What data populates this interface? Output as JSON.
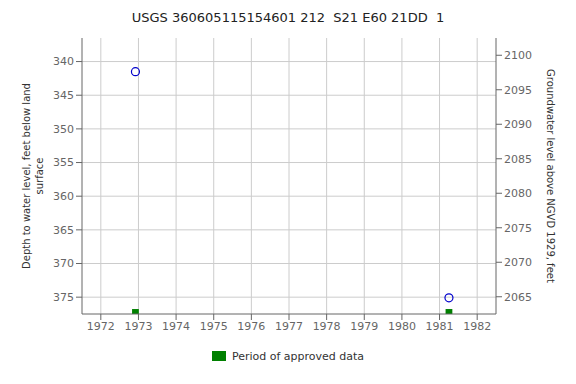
{
  "chart_data": {
    "type": "scatter",
    "title": "USGS 360605115154601 212  S21 E60 21DD  1",
    "x": [
      1972.92,
      1981.25
    ],
    "values": [
      341.5,
      375.1
    ],
    "color": "#0000cc",
    "marker": "circle",
    "xlim": [
      1971.5,
      1982.5
    ],
    "xticks": [
      1972,
      1973,
      1974,
      1975,
      1976,
      1977,
      1978,
      1979,
      1980,
      1981,
      1982
    ],
    "ylim": [
      377.5,
      336.5
    ],
    "yticks": [
      340,
      345,
      350,
      355,
      360,
      365,
      370,
      375
    ],
    "y2lim": [
      2062.5,
      2102.5
    ],
    "y2ticks": [
      2065,
      2070,
      2075,
      2080,
      2085,
      2090,
      2095,
      2100
    ],
    "ylabel": "Depth to water level, feet below land\n surface",
    "y2label": "Groundwater level above NGVD 1929, feet",
    "approved_periods": {
      "name": "Period of approved data",
      "color": "#008000",
      "x": [
        1972.92,
        1981.25
      ],
      "width": [
        0.18,
        0.18
      ]
    },
    "grid": true,
    "legend": "bottom"
  }
}
